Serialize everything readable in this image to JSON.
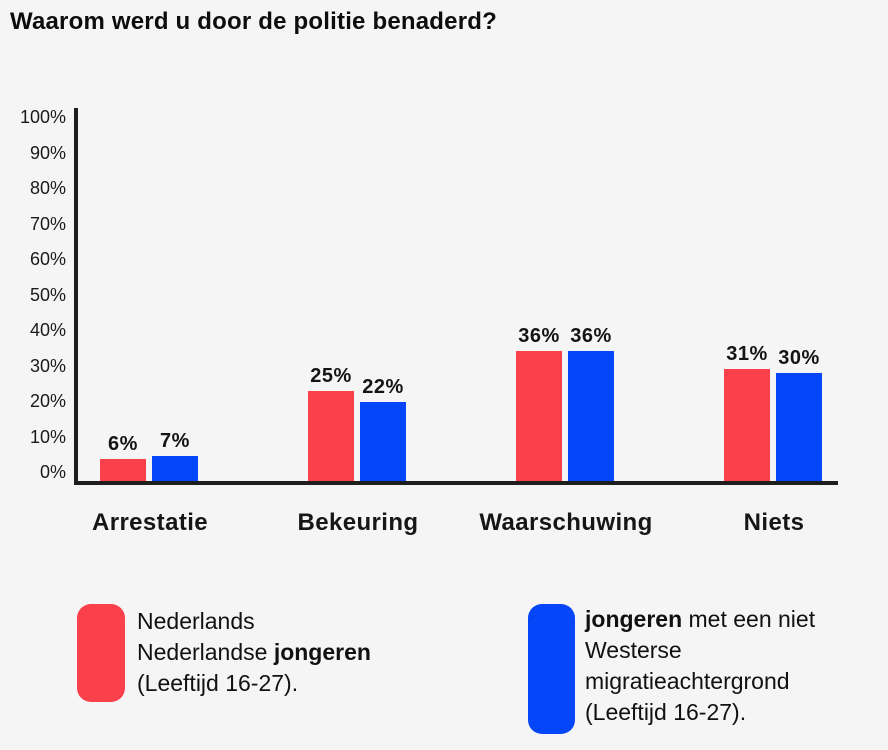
{
  "title": "Waarom werd u door de politie benaderd?",
  "colors": {
    "red": "#F9404B",
    "blue": "#0446F8",
    "axis": "#1E1E1E",
    "text": "#111111",
    "background": "#F5F5F5"
  },
  "chart_data": {
    "type": "bar",
    "title": "Waarom werd u door de politie benaderd?",
    "categories": [
      "Arrestatie",
      "Bekeuring",
      "Waarschuwing",
      "Niets"
    ],
    "series": [
      {
        "name": "Nederlands Nederlandse jongeren (Leeftijd 16-27).",
        "color": "#F9404B",
        "values": [
          6,
          25,
          36,
          31
        ]
      },
      {
        "name": "jongeren met een niet Westerse migratieachtergrond (Leeftijd 16-27).",
        "color": "#0446F8",
        "values": [
          7,
          22,
          36,
          30
        ]
      }
    ],
    "data_label_suffix": "%",
    "xlabel": "",
    "ylabel": "",
    "ylim": [
      0,
      100
    ],
    "ytick_labels": [
      "0%",
      "10%",
      "20%",
      "30%",
      "40%",
      "50%",
      "60%",
      "70%",
      "80%",
      "90%",
      "100%"
    ],
    "grid": false,
    "legend_position": "bottom"
  },
  "legend": {
    "left": {
      "swatch_color": "#F9404B",
      "lines": [
        [
          {
            "text": "Nederlands",
            "bold": false
          }
        ],
        [
          {
            "text": "Nederlandse ",
            "bold": false
          },
          {
            "text": "jongeren",
            "bold": true
          }
        ],
        [
          {
            "text": "(Leeftijd 16-27).",
            "bold": false
          }
        ]
      ]
    },
    "right": {
      "swatch_color": "#0446F8",
      "lines": [
        [
          {
            "text": "jongeren",
            "bold": true
          },
          {
            "text": " met een niet",
            "bold": false
          }
        ],
        [
          {
            "text": "Westerse",
            "bold": false
          }
        ],
        [
          {
            "text": "migratieachtergrond",
            "bold": false
          }
        ],
        [
          {
            "text": "(Leeftijd 16-27).",
            "bold": false
          }
        ]
      ]
    }
  }
}
